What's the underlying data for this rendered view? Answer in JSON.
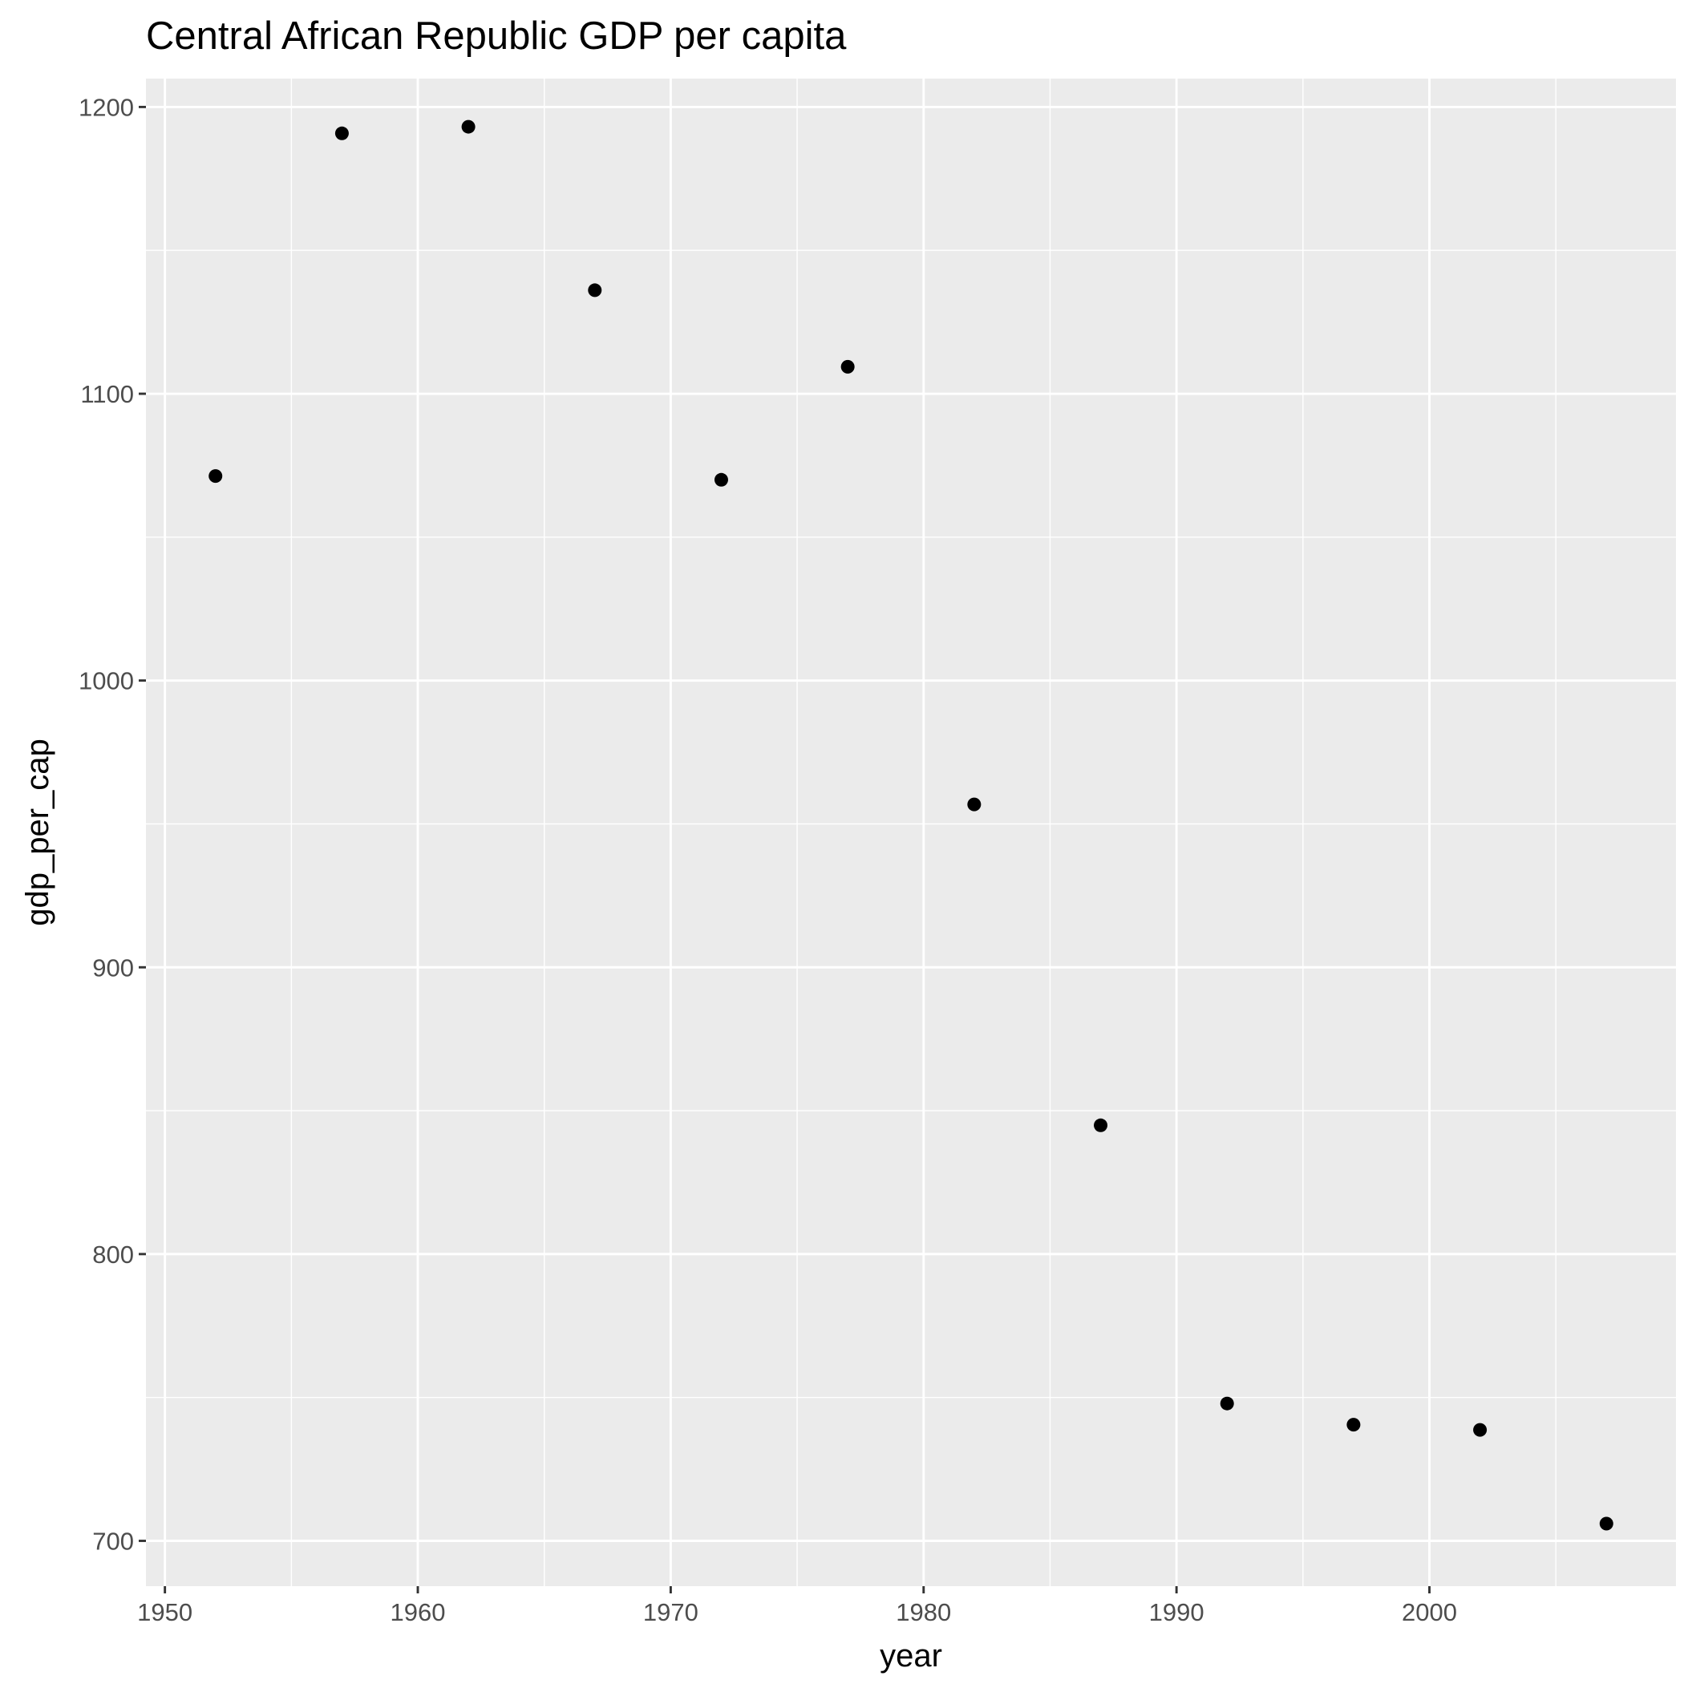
{
  "chart_data": {
    "type": "scatter",
    "title": "Central African Republic GDP per capita",
    "xlabel": "year",
    "ylabel": "gdp_per_cap",
    "xlim": [
      1949.25,
      2009.75
    ],
    "ylim": [
      684.2,
      1209.9
    ],
    "x_ticks": [
      1950,
      1960,
      1970,
      1980,
      1990,
      2000
    ],
    "x_tick_labels": [
      "1950",
      "1960",
      "1970",
      "1980",
      "1990",
      "2000"
    ],
    "x_minor_ticks": [
      1955,
      1965,
      1975,
      1985,
      1995,
      2005
    ],
    "y_ticks": [
      700,
      800,
      900,
      1000,
      1100,
      1200
    ],
    "y_tick_labels": [
      "700",
      "800",
      "900",
      "1000",
      "1100",
      "1200"
    ],
    "y_minor_ticks": [
      750,
      850,
      950,
      1050,
      1150
    ],
    "grid": true,
    "legend": "none",
    "panel_color": "#ebebeb",
    "grid_color": "#ffffff",
    "point_color": "#000000",
    "series": [
      {
        "x": [
          1952,
          1957,
          1962,
          1967,
          1972,
          1977,
          1982,
          1987,
          1992,
          1997,
          2002,
          2007
        ],
        "y": [
          1071.3,
          1190.8,
          1193.1,
          1136.1,
          1070.0,
          1109.4,
          956.8,
          844.9,
          747.9,
          740.5,
          738.7,
          706.0
        ]
      }
    ]
  }
}
